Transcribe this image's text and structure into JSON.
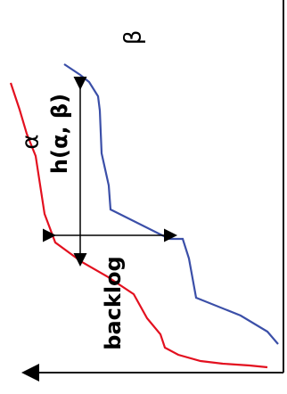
{
  "labels": {
    "beta": "β",
    "alpha": "α",
    "h": "h(α, β)",
    "backlog": "backlog"
  },
  "colors": {
    "alpha_curve": "#e3101f",
    "beta_curve": "#3b4fa8",
    "axes": "#111111",
    "annotations": "#000000"
  }
}
